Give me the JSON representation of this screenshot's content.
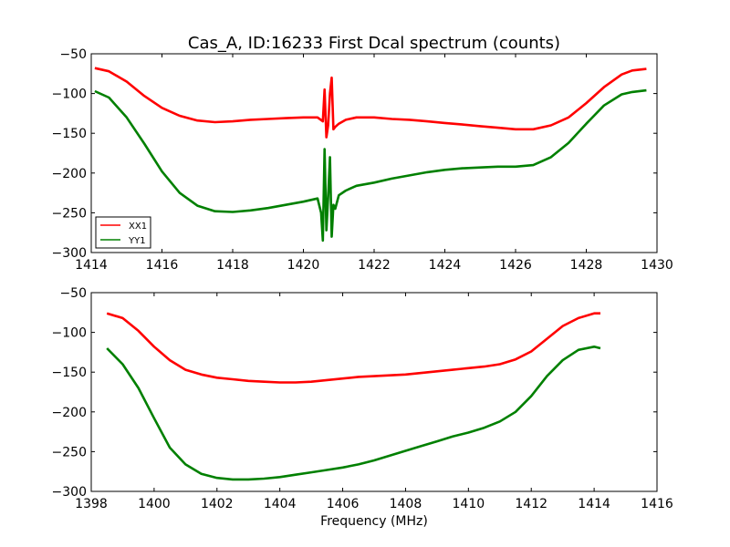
{
  "figure": {
    "title": "Cas_A, ID:16233 First Dcal spectrum (counts)",
    "xlabel": "Frequency (MHz)"
  },
  "chart_data": [
    {
      "type": "line",
      "title": "Cas_A, ID:16233 First Dcal spectrum (counts)",
      "xlabel": "",
      "ylabel": "",
      "xlim": [
        1414,
        1430
      ],
      "ylim": [
        -300,
        -50
      ],
      "xticks": [
        1414,
        1416,
        1418,
        1420,
        1422,
        1424,
        1426,
        1428,
        1430
      ],
      "yticks": [
        -300,
        -250,
        -200,
        -150,
        -100,
        -50
      ],
      "grid": false,
      "legend": "lower-left",
      "series": [
        {
          "name": "XX1",
          "color": "#ff0000",
          "x": [
            1414.1,
            1414.5,
            1415.0,
            1415.5,
            1416.0,
            1416.5,
            1417.0,
            1417.5,
            1418.0,
            1418.5,
            1419.0,
            1419.5,
            1420.0,
            1420.4,
            1420.55,
            1420.6,
            1420.65,
            1420.7,
            1420.75,
            1420.8,
            1420.85,
            1420.9,
            1421.0,
            1421.2,
            1421.5,
            1422.0,
            1422.5,
            1423.0,
            1423.5,
            1424.0,
            1424.5,
            1425.0,
            1425.5,
            1426.0,
            1426.5,
            1427.0,
            1427.5,
            1428.0,
            1428.5,
            1429.0,
            1429.3,
            1429.7
          ],
          "y": [
            -68,
            -72,
            -85,
            -103,
            -118,
            -128,
            -134,
            -136,
            -135,
            -133,
            -132,
            -131,
            -130,
            -130,
            -135,
            -95,
            -155,
            -140,
            -100,
            -80,
            -145,
            -142,
            -138,
            -133,
            -130,
            -130,
            -132,
            -133,
            -135,
            -137,
            -139,
            -141,
            -143,
            -145,
            -145,
            -140,
            -130,
            -112,
            -92,
            -76,
            -71,
            -69
          ]
        },
        {
          "name": "YY1",
          "color": "#008000",
          "x": [
            1414.1,
            1414.5,
            1415.0,
            1415.5,
            1416.0,
            1416.5,
            1417.0,
            1417.5,
            1418.0,
            1418.5,
            1419.0,
            1419.5,
            1420.0,
            1420.4,
            1420.5,
            1420.55,
            1420.6,
            1420.65,
            1420.7,
            1420.75,
            1420.8,
            1420.85,
            1420.9,
            1421.0,
            1421.2,
            1421.5,
            1422.0,
            1422.5,
            1423.0,
            1423.5,
            1424.0,
            1424.5,
            1425.0,
            1425.5,
            1426.0,
            1426.5,
            1427.0,
            1427.5,
            1428.0,
            1428.5,
            1429.0,
            1429.3,
            1429.7
          ],
          "y": [
            -97,
            -105,
            -130,
            -163,
            -198,
            -225,
            -241,
            -248,
            -249,
            -247,
            -244,
            -240,
            -236,
            -232,
            -250,
            -285,
            -170,
            -272,
            -230,
            -180,
            -280,
            -240,
            -245,
            -228,
            -222,
            -216,
            -212,
            -207,
            -203,
            -199,
            -196,
            -194,
            -193,
            -192,
            -192,
            -190,
            -180,
            -162,
            -138,
            -115,
            -101,
            -98,
            -96
          ]
        }
      ]
    },
    {
      "type": "line",
      "title": "",
      "xlabel": "Frequency (MHz)",
      "ylabel": "",
      "xlim": [
        1398,
        1416
      ],
      "ylim": [
        -300,
        -50
      ],
      "xticks": [
        1398,
        1400,
        1402,
        1404,
        1406,
        1408,
        1410,
        1412,
        1414,
        1416
      ],
      "yticks": [
        -300,
        -250,
        -200,
        -150,
        -100,
        -50
      ],
      "grid": false,
      "series": [
        {
          "color": "#ff0000",
          "x": [
            1398.5,
            1399.0,
            1399.5,
            1400.0,
            1400.5,
            1401.0,
            1401.5,
            1402.0,
            1402.5,
            1403.0,
            1403.5,
            1404.0,
            1404.5,
            1405.0,
            1405.5,
            1406.0,
            1406.5,
            1407.0,
            1407.5,
            1408.0,
            1408.5,
            1409.0,
            1409.5,
            1410.0,
            1410.5,
            1411.0,
            1411.5,
            1412.0,
            1412.5,
            1413.0,
            1413.5,
            1414.0,
            1414.2
          ],
          "y": [
            -76,
            -82,
            -98,
            -118,
            -135,
            -147,
            -153,
            -157,
            -159,
            -161,
            -162,
            -163,
            -163,
            -162,
            -160,
            -158,
            -156,
            -155,
            -154,
            -153,
            -151,
            -149,
            -147,
            -145,
            -143,
            -140,
            -134,
            -124,
            -108,
            -92,
            -82,
            -76,
            -76
          ]
        },
        {
          "color": "#008000",
          "x": [
            1398.5,
            1399.0,
            1399.5,
            1400.0,
            1400.5,
            1401.0,
            1401.5,
            1402.0,
            1402.5,
            1403.0,
            1403.5,
            1404.0,
            1404.5,
            1405.0,
            1405.5,
            1406.0,
            1406.5,
            1407.0,
            1407.5,
            1408.0,
            1408.5,
            1409.0,
            1409.5,
            1410.0,
            1410.5,
            1411.0,
            1411.5,
            1412.0,
            1412.5,
            1413.0,
            1413.5,
            1414.0,
            1414.2
          ],
          "y": [
            -120,
            -140,
            -170,
            -208,
            -245,
            -266,
            -278,
            -283,
            -285,
            -285,
            -284,
            -282,
            -279,
            -276,
            -273,
            -270,
            -266,
            -261,
            -255,
            -249,
            -243,
            -237,
            -231,
            -226,
            -220,
            -212,
            -200,
            -180,
            -155,
            -135,
            -122,
            -118,
            -120
          ]
        }
      ]
    }
  ]
}
